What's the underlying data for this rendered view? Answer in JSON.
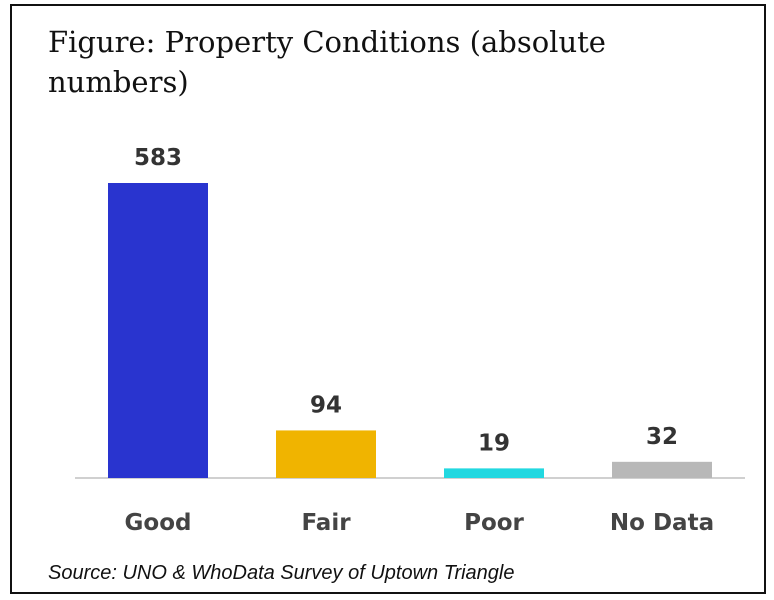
{
  "chart_data": {
    "type": "bar",
    "title": "Figure: Property Conditions (absolute numbers)",
    "categories": [
      "Good",
      "Fair",
      "Poor",
      "No Data"
    ],
    "values": [
      583,
      94,
      19,
      32
    ],
    "colors": [
      "#2934cf",
      "#f0b400",
      "#22d8e0",
      "#b8b8b8"
    ],
    "source": "Source: UNO & WhoData Survey of Uptown Triangle"
  }
}
